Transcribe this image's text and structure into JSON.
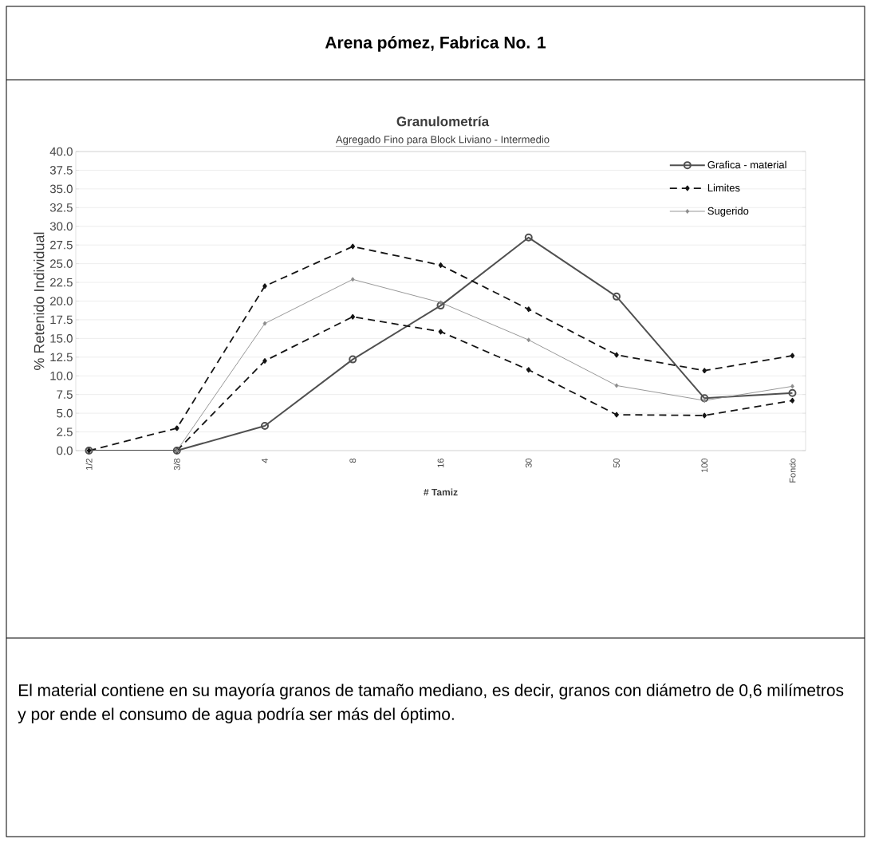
{
  "chart_data": {
    "type": "line",
    "title": "Granulometría",
    "subtitle": "Agregado Fino para Block Liviano - Intermedio",
    "xlabel": "# Tamiz",
    "ylabel": "% Retenido Individual",
    "categories": [
      "1/2",
      "3/8",
      "4",
      "8",
      "16",
      "30",
      "50",
      "100",
      "Fondo"
    ],
    "series": [
      {
        "name": "Grafica - material",
        "color": "#505050",
        "marker": "circle",
        "line_style": "solid",
        "values": [
          0,
          0,
          3.3,
          12.2,
          19.4,
          28.5,
          20.6,
          7.0,
          7.7
        ]
      },
      {
        "name": "Limites",
        "color": "#141414",
        "marker": "diamond",
        "line_style": "dashed",
        "values": [
          0,
          3.0,
          22.0,
          27.3,
          24.8,
          18.9,
          12.8,
          10.7,
          12.7
        ]
      },
      {
        "color": "#141414",
        "marker": "diamond",
        "line_style": "dashed",
        "values": [
          null,
          0,
          12.0,
          17.9,
          15.9,
          10.8,
          4.8,
          4.7,
          6.7
        ]
      },
      {
        "name": "Sugerido",
        "color": "#8c8c8c",
        "marker": "diamond",
        "line_style": "solid",
        "values": [
          null,
          0,
          17.0,
          22.9,
          19.8,
          14.8,
          8.7,
          6.7,
          8.6
        ]
      }
    ],
    "ylim": [
      0,
      40
    ],
    "yticks": [
      {
        "value": 0,
        "label": "0.0"
      },
      2.5,
      {
        "value": 5,
        "label": "5.0"
      },
      7.5,
      {
        "value": 10,
        "label": "10.0"
      },
      12.5,
      {
        "value": 15,
        "label": "15.0"
      },
      17.5,
      {
        "value": 20,
        "label": "20.0"
      },
      22.5,
      {
        "value": 25,
        "label": "25.0"
      },
      27.5,
      {
        "value": 30,
        "label": "30.0"
      },
      32.5,
      {
        "value": 35,
        "label": "35.0"
      },
      37.5,
      {
        "value": 40,
        "label": "40.0"
      }
    ],
    "grid": "y",
    "legend": "top right",
    "annotations": [
      "Arena pómez, Fabrica No. 1",
      "El material contiene en su mayoría granos de tamaño mediano, es decir, granos con diámetro de 0,6 milímetros y por ende el consumo de agua podría ser más del óptimo."
    ]
  }
}
